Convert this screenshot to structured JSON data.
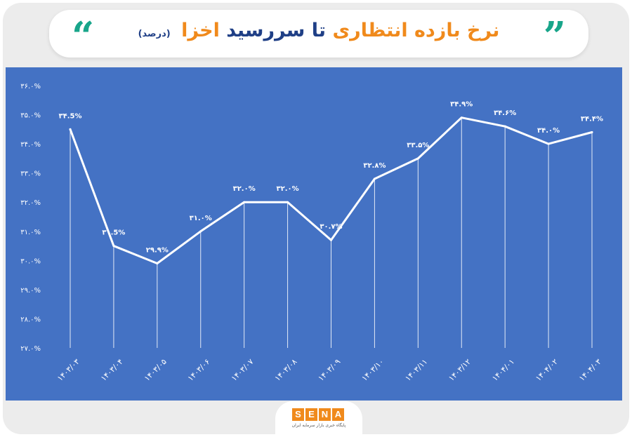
{
  "title": {
    "part1": "نرخ بازده انتظاری",
    "part2": "تا سررسید",
    "part3": "اخزا",
    "unit": "(درصد)"
  },
  "logo": {
    "letters": [
      "S",
      "E",
      "N",
      "A"
    ],
    "letter_colors": [
      "#f08a1c",
      "#f08a1c",
      "#f08a1c",
      "#f08a1c"
    ],
    "subtitle": "پایگاه خبری بازار سرمایه ایران"
  },
  "colors": {
    "panel": "#4472c4",
    "line": "#ffffff",
    "accent_orange": "#f08a1c",
    "accent_navy": "#1f3f86",
    "quote_green": "#18a58a"
  },
  "chart_data": {
    "type": "line",
    "categories": [
      "۱۴۰۳/۰۳",
      "۱۴۰۳/۰۴",
      "۱۴۰۳/۰۵",
      "۱۴۰۳/۰۶",
      "۱۴۰۳/۰۷",
      "۱۴۰۳/۰۸",
      "۱۴۰۳/۰۹",
      "۱۴۰۳/۱۰",
      "۱۴۰۳/۱۱",
      "۱۴۰۳/۱۲",
      "۱۴۰۴/۰۱",
      "۱۴۰۴/۰۲",
      "۱۴۰۴/۰۳"
    ],
    "values": [
      34.5,
      30.5,
      29.9,
      31.0,
      32.0,
      32.0,
      30.7,
      32.8,
      33.5,
      34.9,
      34.6,
      34.0,
      34.4
    ],
    "data_labels": [
      "۳۴.5%",
      "۳۰.5%",
      "۲۹.۹%",
      "۳۱.۰%",
      "۳۲.۰%",
      "۳۲.۰%",
      "۳۰.۷%",
      "۳۲.۸%",
      "۳۳.۵%",
      "۳۴.۹%",
      "۳۴.۶%",
      "۳۴.۰%",
      "۳۴.۴%"
    ],
    "y_ticks": [
      27,
      28,
      29,
      30,
      31,
      32,
      33,
      34,
      35,
      36
    ],
    "y_tick_labels": [
      "۲۷.۰%",
      "۲۸.۰%",
      "۲۹.۰%",
      "۳۰.۰%",
      "۳۱.۰%",
      "۳۲.۰%",
      "۳۳.۰%",
      "۳۴.۰%",
      "۳۵.۰%",
      "۳۶.۰%"
    ],
    "ylim": [
      27,
      36
    ],
    "title": "",
    "xlabel": "",
    "ylabel": "",
    "grid": false,
    "drop_lines": true
  }
}
